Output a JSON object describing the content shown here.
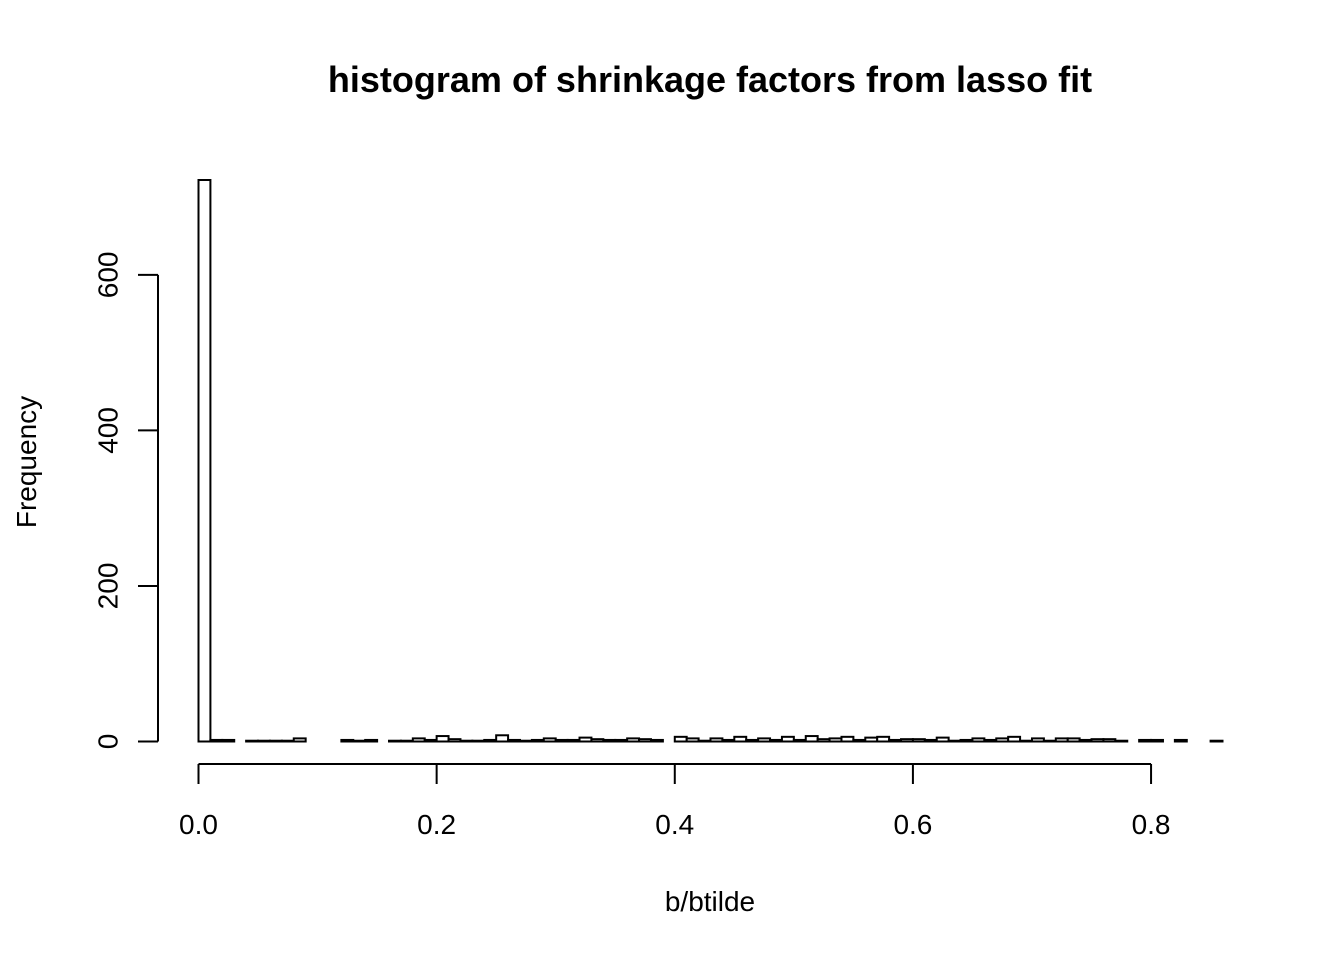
{
  "chart_data": {
    "type": "bar",
    "title": "histogram of shrinkage factors from lasso fit",
    "xlabel": "b/btilde",
    "ylabel": "Frequency",
    "bin_width": 0.01,
    "x_bins_start": [
      0.0,
      0.01,
      0.02,
      0.03,
      0.04,
      0.05,
      0.06,
      0.07,
      0.08,
      0.09,
      0.1,
      0.11,
      0.12,
      0.13,
      0.14,
      0.15,
      0.16,
      0.17,
      0.18,
      0.19,
      0.2,
      0.21,
      0.22,
      0.23,
      0.24,
      0.25,
      0.26,
      0.27,
      0.28,
      0.29,
      0.3,
      0.31,
      0.32,
      0.33,
      0.34,
      0.35,
      0.36,
      0.37,
      0.38,
      0.39,
      0.4,
      0.41,
      0.42,
      0.43,
      0.44,
      0.45,
      0.46,
      0.47,
      0.48,
      0.49,
      0.5,
      0.51,
      0.52,
      0.53,
      0.54,
      0.55,
      0.56,
      0.57,
      0.58,
      0.59,
      0.6,
      0.61,
      0.62,
      0.63,
      0.64,
      0.65,
      0.66,
      0.67,
      0.68,
      0.69,
      0.7,
      0.71,
      0.72,
      0.73,
      0.74,
      0.75,
      0.76,
      0.77,
      0.78,
      0.79,
      0.8,
      0.81,
      0.82,
      0.83,
      0.84,
      0.85
    ],
    "values": [
      722,
      2,
      2,
      0,
      1,
      1,
      1,
      1,
      4,
      0,
      0,
      0,
      2,
      1,
      2,
      0,
      1,
      1,
      4,
      2,
      7,
      3,
      1,
      1,
      2,
      8,
      2,
      1,
      2,
      4,
      2,
      2,
      5,
      3,
      2,
      2,
      4,
      3,
      2,
      0,
      6,
      4,
      1,
      4,
      2,
      6,
      2,
      4,
      2,
      6,
      2,
      7,
      3,
      4,
      6,
      2,
      5,
      6,
      2,
      3,
      3,
      2,
      5,
      1,
      2,
      4,
      2,
      4,
      6,
      1,
      4,
      1,
      4,
      4,
      2,
      3,
      3,
      1,
      0,
      2,
      2,
      0,
      2,
      0,
      0,
      1
    ],
    "xlim": [
      0.0,
      0.86
    ],
    "ylim": [
      0,
      722
    ],
    "x_ticks": [
      0.0,
      0.2,
      0.4,
      0.6,
      0.8
    ],
    "x_tick_labels": [
      "0.0",
      "0.2",
      "0.4",
      "0.6",
      "0.8"
    ],
    "y_ticks": [
      0,
      200,
      400,
      600
    ],
    "y_tick_labels": [
      "0",
      "200",
      "400",
      "600"
    ],
    "grid": false,
    "bar_fill": "#ffffff",
    "bar_stroke": "#000000"
  }
}
